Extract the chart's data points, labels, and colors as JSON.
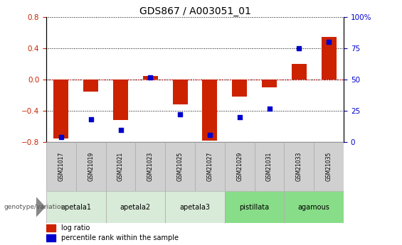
{
  "title": "GDS867 / A003051_01",
  "samples": [
    "GSM21017",
    "GSM21019",
    "GSM21021",
    "GSM21023",
    "GSM21025",
    "GSM21027",
    "GSM21029",
    "GSM21031",
    "GSM21033",
    "GSM21035"
  ],
  "log_ratio": [
    -0.75,
    -0.15,
    -0.52,
    0.05,
    -0.32,
    -0.78,
    -0.22,
    -0.1,
    0.2,
    0.55
  ],
  "percentile_rank": [
    4,
    18,
    10,
    52,
    22,
    6,
    20,
    27,
    75,
    80
  ],
  "ylim_left": [
    -0.8,
    0.8
  ],
  "ylim_right": [
    0,
    100
  ],
  "yticks_left": [
    -0.8,
    -0.4,
    0.0,
    0.4,
    0.8
  ],
  "yticks_right": [
    0,
    25,
    50,
    75,
    100
  ],
  "bar_color": "#cc2200",
  "dot_color": "#0000cc",
  "zero_line_color": "#cc0000",
  "bg_color": "#ffffff",
  "groups": [
    {
      "name": "apetala1",
      "indices": [
        0,
        1
      ],
      "color": "#d8ead8"
    },
    {
      "name": "apetala2",
      "indices": [
        2,
        3
      ],
      "color": "#d8ead8"
    },
    {
      "name": "apetala3",
      "indices": [
        4,
        5
      ],
      "color": "#d8ead8"
    },
    {
      "name": "pistillata",
      "indices": [
        6,
        7
      ],
      "color": "#88dd88"
    },
    {
      "name": "agamous",
      "indices": [
        8,
        9
      ],
      "color": "#88dd88"
    }
  ],
  "legend_items": [
    "log ratio",
    "percentile rank within the sample"
  ],
  "genotype_label": "genotype/variation"
}
